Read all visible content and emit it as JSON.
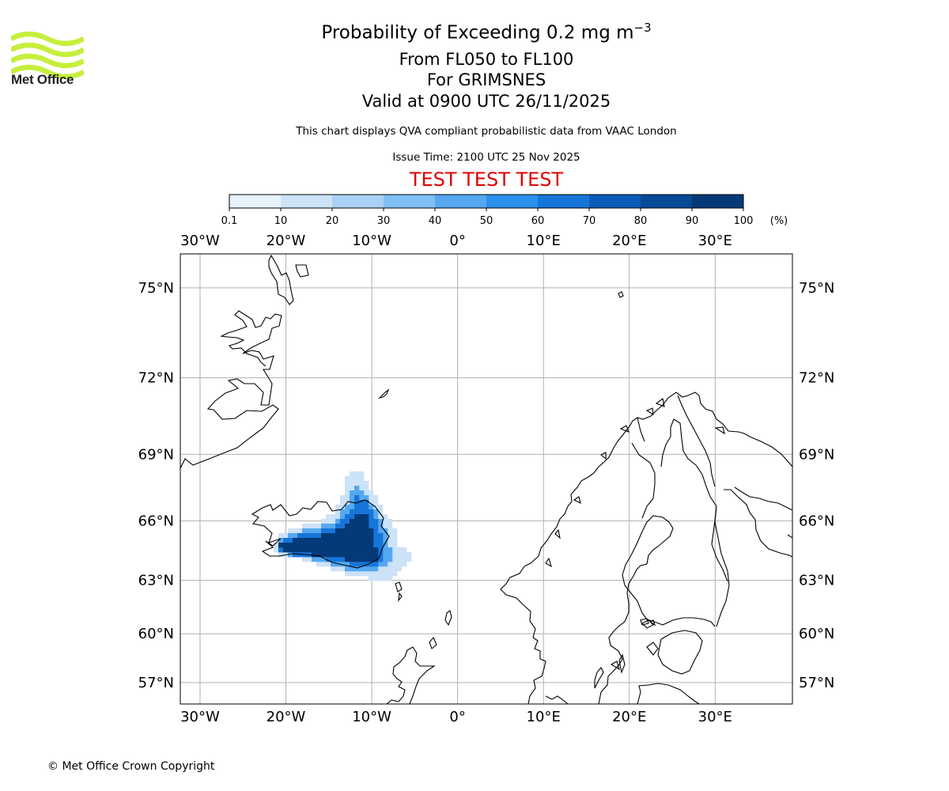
{
  "header": {
    "logo_text": "Met Office",
    "title": "Probability of Exceeding 0.2 mg m",
    "title_superscript": "−3",
    "subtitle_levels": "From FL050 to FL100",
    "subtitle_volcano": "For GRIMSNES",
    "subtitle_valid": "Valid at 0900 UTC 26/11/2025",
    "compliance_note": "This chart displays QVA compliant probabilistic data from VAAC London",
    "issue_time": "Issue Time: 2100 UTC 25 Nov 2025",
    "test_banner": "TEST TEST TEST"
  },
  "colorbar": {
    "tick_labels": [
      "0.1",
      "10",
      "20",
      "30",
      "40",
      "50",
      "60",
      "70",
      "80",
      "90",
      "100"
    ],
    "unit_label": "(%)",
    "colors": [
      "#e8f2fc",
      "#cce2f7",
      "#a9d1f5",
      "#80bff3",
      "#55a8f0",
      "#2b90ec",
      "#1675d8",
      "#0b5cb8",
      "#074a97",
      "#053a78",
      "#05295a"
    ]
  },
  "map": {
    "lon_labels": [
      "30°W",
      "20°W",
      "10°W",
      "0°",
      "10°E",
      "20°E",
      "30°E"
    ],
    "lat_labels": [
      "75°N",
      "72°N",
      "69°N",
      "66°N",
      "63°N",
      "60°N",
      "57°N"
    ],
    "extent": {
      "lon_min": -32.3,
      "lon_max": 39,
      "lat_min": 55.6,
      "lat_max": 76
    },
    "projection": "Mercator",
    "grid": true,
    "plume_colors": {
      "low": "#cce2f7",
      "mid": "#55a8f0",
      "high": "#1675d8",
      "very_high": "#053a78"
    }
  },
  "footer": {
    "copyright": "© Met Office Crown Copyright"
  }
}
